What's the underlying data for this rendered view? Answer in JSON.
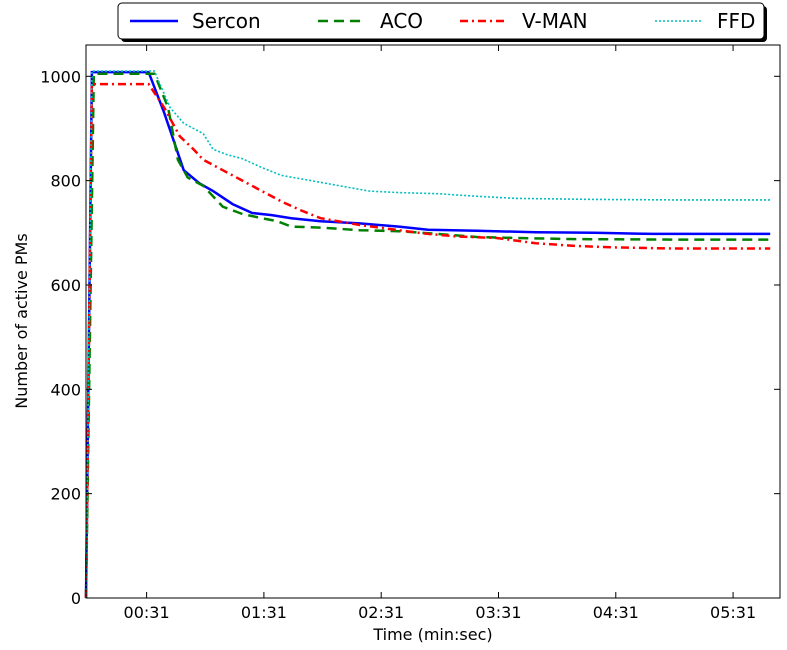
{
  "chart_data": {
    "type": "line",
    "xlabel": "Time (min:sec)",
    "ylabel": "Number of active PMs",
    "xlim": [
      0,
      355
    ],
    "ylim": [
      0,
      1060
    ],
    "x_ticks": [
      {
        "value": 31,
        "label": "00:31"
      },
      {
        "value": 91,
        "label": "01:31"
      },
      {
        "value": 151,
        "label": "02:31"
      },
      {
        "value": 211,
        "label": "03:31"
      },
      {
        "value": 271,
        "label": "04:31"
      },
      {
        "value": 331,
        "label": "05:31"
      }
    ],
    "y_ticks": [
      {
        "value": 0,
        "label": "0"
      },
      {
        "value": 200,
        "label": "200"
      },
      {
        "value": 400,
        "label": "400"
      },
      {
        "value": 600,
        "label": "600"
      },
      {
        "value": 800,
        "label": "800"
      },
      {
        "value": 1000,
        "label": "1000"
      }
    ],
    "grid": false,
    "legend_position": "top",
    "series": [
      {
        "name": "Sercon",
        "color": "#0000ff",
        "style": "solid",
        "points": [
          [
            0,
            0
          ],
          [
            3,
            1008
          ],
          [
            32,
            1008
          ],
          [
            40,
            930
          ],
          [
            50,
            820
          ],
          [
            58,
            795
          ],
          [
            65,
            780
          ],
          [
            75,
            755
          ],
          [
            85,
            738
          ],
          [
            95,
            734
          ],
          [
            105,
            728
          ],
          [
            120,
            722
          ],
          [
            140,
            718
          ],
          [
            160,
            712
          ],
          [
            175,
            706
          ],
          [
            200,
            704
          ],
          [
            230,
            701
          ],
          [
            260,
            700
          ],
          [
            290,
            698
          ],
          [
            320,
            698
          ],
          [
            350,
            698
          ]
        ]
      },
      {
        "name": "ACO",
        "color": "#008000",
        "style": "dashed",
        "points": [
          [
            0,
            0
          ],
          [
            4,
            1005
          ],
          [
            35,
            1005
          ],
          [
            42,
            940
          ],
          [
            47,
            840
          ],
          [
            52,
            806
          ],
          [
            60,
            790
          ],
          [
            70,
            750
          ],
          [
            80,
            736
          ],
          [
            90,
            728
          ],
          [
            98,
            722
          ],
          [
            105,
            712
          ],
          [
            120,
            710
          ],
          [
            140,
            705
          ],
          [
            160,
            703
          ],
          [
            180,
            698
          ],
          [
            200,
            692
          ],
          [
            220,
            690
          ],
          [
            250,
            688
          ],
          [
            300,
            687
          ],
          [
            350,
            687
          ]
        ]
      },
      {
        "name": "V-MAN",
        "color": "#ff0000",
        "style": "dashdot",
        "points": [
          [
            0,
            0
          ],
          [
            3,
            985
          ],
          [
            32,
            985
          ],
          [
            40,
            940
          ],
          [
            48,
            885
          ],
          [
            55,
            860
          ],
          [
            60,
            840
          ],
          [
            70,
            820
          ],
          [
            80,
            800
          ],
          [
            90,
            780
          ],
          [
            100,
            760
          ],
          [
            110,
            743
          ],
          [
            120,
            728
          ],
          [
            140,
            715
          ],
          [
            160,
            705
          ],
          [
            175,
            698
          ],
          [
            190,
            693
          ],
          [
            210,
            690
          ],
          [
            230,
            680
          ],
          [
            250,
            675
          ],
          [
            270,
            672
          ],
          [
            300,
            670
          ],
          [
            350,
            670
          ]
        ]
      },
      {
        "name": "FFD",
        "color": "#00bfbf",
        "style": "dotted",
        "points": [
          [
            0,
            0
          ],
          [
            3,
            1010
          ],
          [
            35,
            1010
          ],
          [
            43,
            940
          ],
          [
            50,
            910
          ],
          [
            60,
            890
          ],
          [
            65,
            860
          ],
          [
            72,
            850
          ],
          [
            80,
            842
          ],
          [
            90,
            825
          ],
          [
            100,
            810
          ],
          [
            115,
            800
          ],
          [
            130,
            790
          ],
          [
            145,
            780
          ],
          [
            160,
            777
          ],
          [
            180,
            775
          ],
          [
            200,
            770
          ],
          [
            220,
            766
          ],
          [
            260,
            764
          ],
          [
            300,
            763
          ],
          [
            350,
            763
          ]
        ]
      }
    ]
  }
}
